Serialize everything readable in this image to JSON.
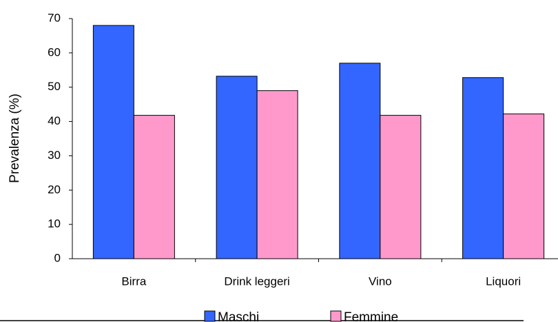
{
  "chart_data": {
    "type": "bar",
    "categories": [
      "Birra",
      "Drink leggeri",
      "Vino",
      "Liquori"
    ],
    "series": [
      {
        "name": "Maschi",
        "color": "#3366ff",
        "values": [
          68,
          53.2,
          57,
          52.8
        ]
      },
      {
        "name": "Femmine",
        "color": "#ff99cc",
        "values": [
          41.8,
          49,
          41.8,
          42.2
        ]
      }
    ],
    "y_label": "Prevalenza (%)",
    "ylim": [
      0,
      70
    ],
    "yticks": [
      0,
      10,
      20,
      30,
      40,
      50,
      60,
      70
    ],
    "legend": "bottom"
  }
}
